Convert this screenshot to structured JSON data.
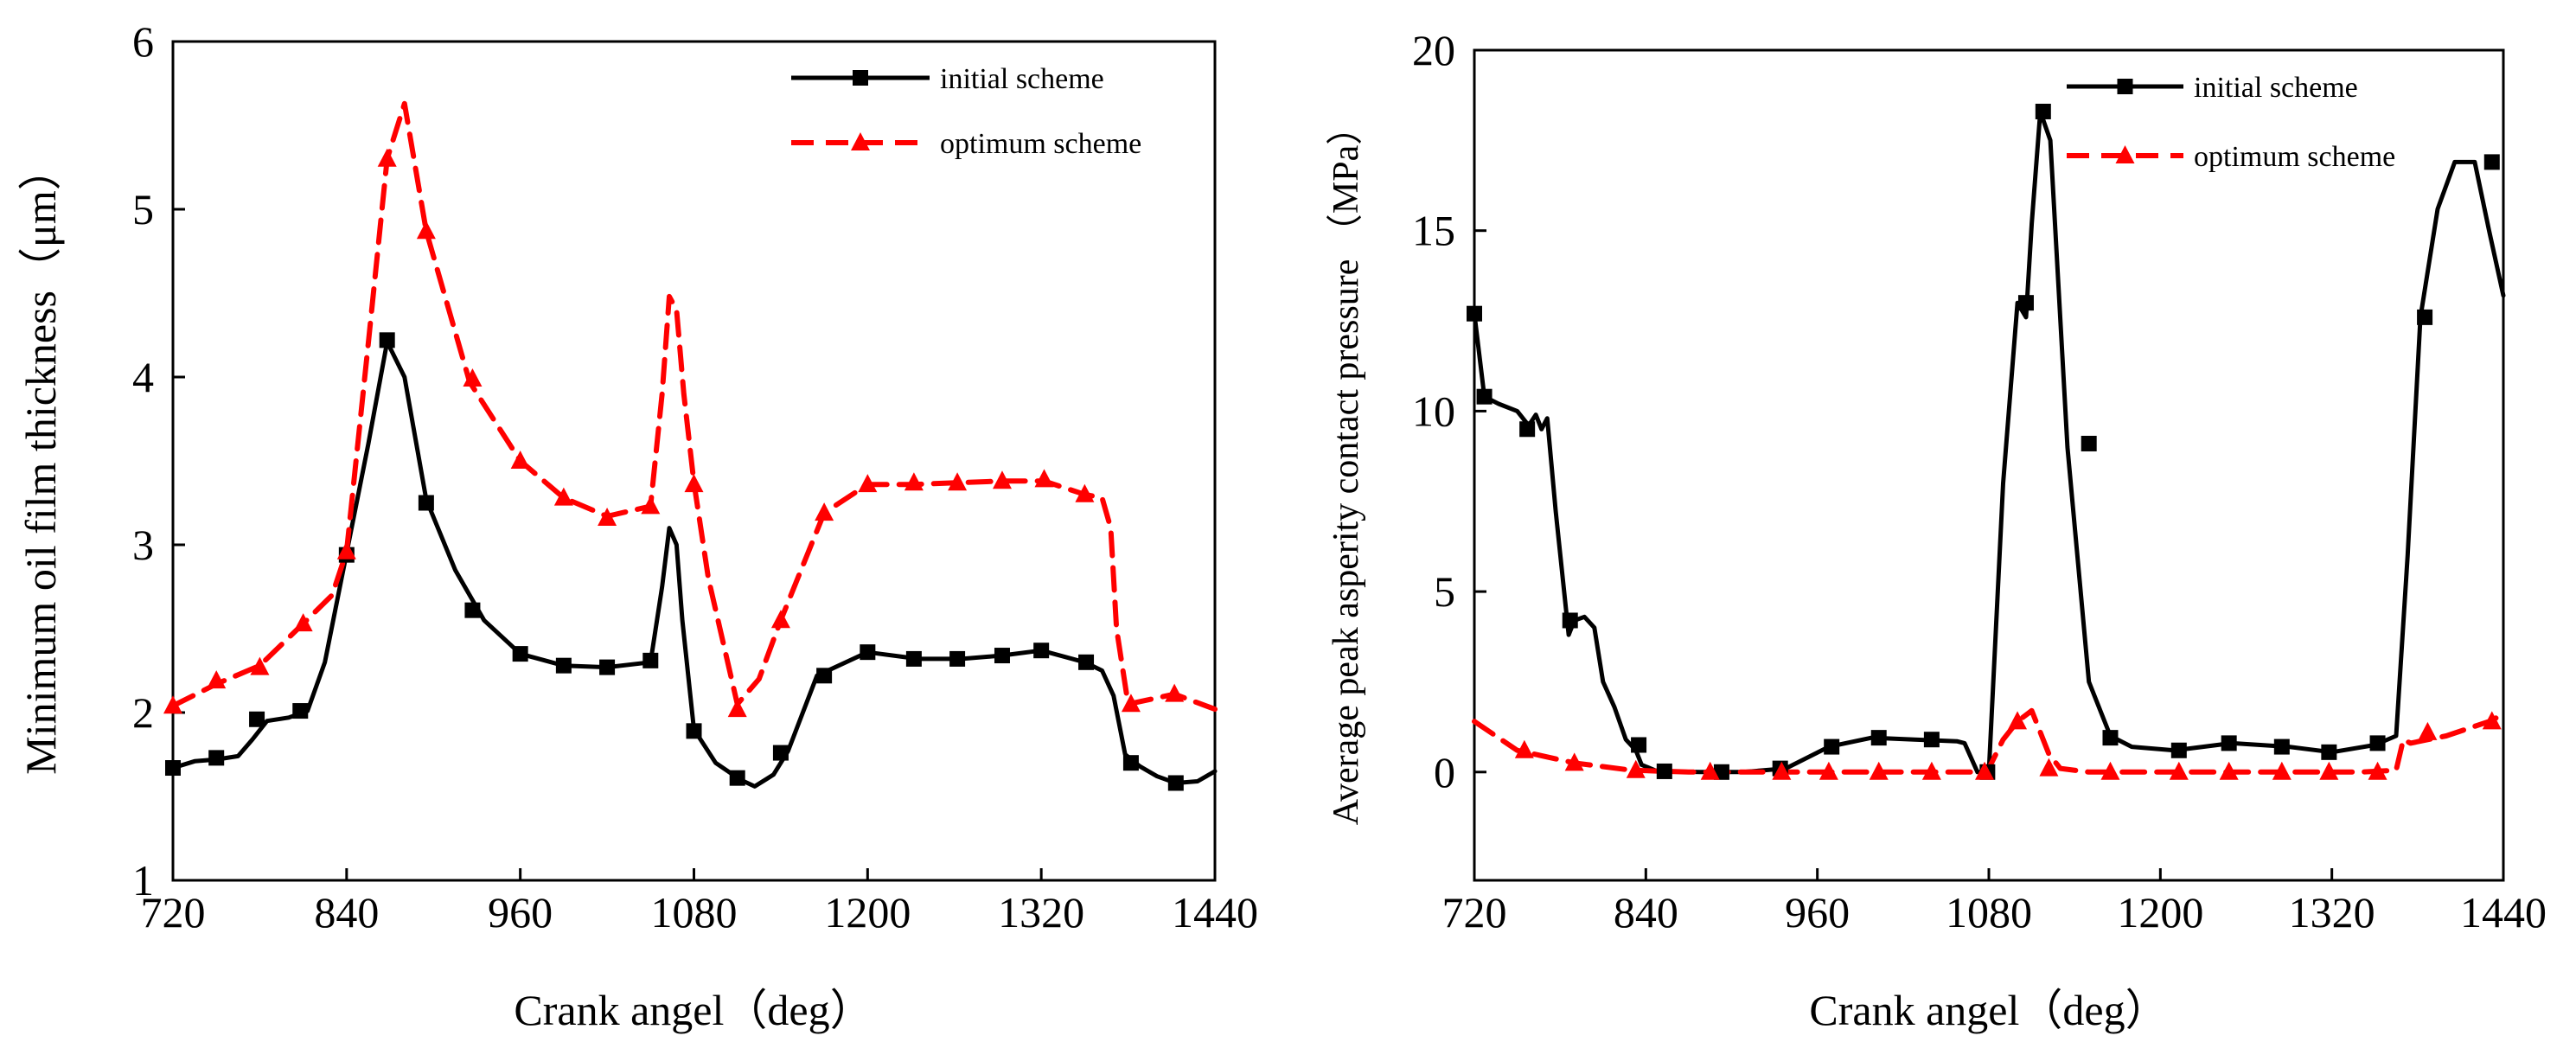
{
  "chart_data": [
    {
      "type": "line",
      "title": "",
      "xlabel": "Crank angel（deg）",
      "ylabel": "Minimum oil film thickness（μm）",
      "xlim": [
        720,
        1440
      ],
      "ylim": [
        1,
        6
      ],
      "xticks": [
        "720",
        "840",
        "960",
        "1080",
        "1200",
        "1320",
        "1440"
      ],
      "yticks": [
        "1",
        "2",
        "3",
        "4",
        "5",
        "6"
      ],
      "legend_position": "top-right",
      "series": [
        {
          "name": "initial scheme",
          "color": "#000000",
          "style": "solid",
          "marker": "square",
          "x": [
            720,
            735,
            750,
            765,
            775,
            785,
            800,
            813,
            825,
            840,
            855,
            868,
            880,
            895,
            915,
            935,
            960,
            990,
            1020,
            1050,
            1058,
            1063,
            1068,
            1072,
            1080,
            1095,
            1112,
            1122,
            1135,
            1145,
            1165,
            1200,
            1235,
            1265,
            1293,
            1320,
            1350,
            1362,
            1370,
            1378,
            1388,
            1400,
            1413,
            1428,
            1440
          ],
          "y": [
            1.67,
            1.71,
            1.72,
            1.74,
            1.84,
            1.95,
            1.97,
            2.01,
            2.3,
            2.95,
            3.6,
            4.21,
            4.0,
            3.27,
            2.85,
            2.55,
            2.35,
            2.28,
            2.27,
            2.3,
            2.75,
            3.1,
            3.0,
            2.55,
            1.9,
            1.7,
            1.6,
            1.56,
            1.63,
            1.77,
            2.22,
            2.36,
            2.32,
            2.32,
            2.34,
            2.37,
            2.3,
            2.25,
            2.1,
            1.75,
            1.68,
            1.62,
            1.58,
            1.59,
            1.65
          ],
          "markers_x": [
            720,
            750,
            778,
            808,
            840,
            868,
            895,
            927,
            960,
            990,
            1020,
            1050,
            1080,
            1110,
            1140,
            1170,
            1200,
            1232,
            1262,
            1293,
            1320,
            1351,
            1382,
            1413
          ],
          "markers_y": [
            1.67,
            1.73,
            1.96,
            2.01,
            2.94,
            4.22,
            3.25,
            2.61,
            2.35,
            2.28,
            2.27,
            2.31,
            1.89,
            1.61,
            1.76,
            2.22,
            2.36,
            2.32,
            2.32,
            2.34,
            2.37,
            2.3,
            1.7,
            1.58
          ]
        },
        {
          "name": "optimum scheme",
          "color": "#ff0000",
          "style": "dashed",
          "marker": "triangle",
          "x": [
            720,
            750,
            780,
            810,
            830,
            840,
            855,
            868,
            880,
            895,
            925,
            960,
            990,
            1020,
            1050,
            1058,
            1063,
            1068,
            1073,
            1080,
            1090,
            1110,
            1125,
            1140,
            1170,
            1200,
            1232,
            1262,
            1293,
            1322,
            1350,
            1362,
            1368,
            1372,
            1380,
            1412,
            1440
          ],
          "y": [
            2.04,
            2.17,
            2.28,
            2.53,
            2.7,
            2.96,
            4.2,
            5.3,
            5.63,
            4.87,
            3.97,
            3.5,
            3.28,
            3.17,
            3.23,
            3.9,
            4.48,
            4.4,
            3.9,
            3.37,
            2.8,
            2.05,
            2.2,
            2.55,
            3.19,
            3.36,
            3.36,
            3.37,
            3.38,
            3.38,
            3.3,
            3.28,
            3.1,
            2.5,
            2.05,
            2.11,
            2.02
          ],
          "markers_x": [
            720,
            750,
            780,
            810,
            840,
            868,
            895,
            927,
            960,
            990,
            1020,
            1050,
            1080,
            1110,
            1140,
            1170,
            1200,
            1232,
            1262,
            1293,
            1322,
            1350,
            1382,
            1412
          ],
          "markers_y": [
            2.04,
            2.19,
            2.27,
            2.53,
            2.96,
            5.3,
            4.87,
            3.99,
            3.5,
            3.28,
            3.16,
            3.23,
            3.36,
            2.02,
            2.55,
            3.19,
            3.36,
            3.37,
            3.37,
            3.38,
            3.39,
            3.3,
            2.05,
            2.11
          ]
        }
      ]
    },
    {
      "type": "line",
      "title": "",
      "xlabel": "Crank angel（deg）",
      "ylabel": "Average peak asperity contact pressure （MPa）",
      "xlim": [
        720,
        1440
      ],
      "ylim": [
        -3,
        20
      ],
      "xticks": [
        "720",
        "840",
        "960",
        "1080",
        "1200",
        "1320",
        "1440"
      ],
      "yticks": [
        "0",
        "5",
        "10",
        "15",
        "20"
      ],
      "legend_position": "top-right",
      "series": [
        {
          "name": "initial scheme",
          "color": "#000000",
          "style": "solid",
          "marker": "square",
          "x": [
            720,
            727,
            737,
            750,
            758,
            763,
            767,
            771,
            777,
            786,
            790,
            797,
            804,
            810,
            818,
            826,
            833,
            837,
            848,
            878,
            908,
            938,
            968,
            998,
            1028,
            1058,
            1063,
            1072,
            1080,
            1090,
            1100,
            1106,
            1110,
            1116,
            1123,
            1135,
            1150,
            1165,
            1180,
            1210,
            1250,
            1290,
            1320,
            1350,
            1365,
            1373,
            1382,
            1394,
            1406,
            1420,
            1430,
            1440
          ],
          "y": [
            12.7,
            10.4,
            10.2,
            10.0,
            9.6,
            9.9,
            9.5,
            9.8,
            7.2,
            3.8,
            4.2,
            4.3,
            4.0,
            2.5,
            1.8,
            0.9,
            0.6,
            0.2,
            0.02,
            0.0,
            0.0,
            0.1,
            0.7,
            0.95,
            0.9,
            0.85,
            0.8,
            0.0,
            0.0,
            8.0,
            13.0,
            12.6,
            15.2,
            18.3,
            17.5,
            9.0,
            2.5,
            1.0,
            0.7,
            0.6,
            0.8,
            0.7,
            0.55,
            0.75,
            1.0,
            6.0,
            12.6,
            15.6,
            16.9,
            16.9,
            15.0,
            13.2
          ],
          "markers_x": [
            720,
            727,
            757,
            787,
            835,
            853,
            893,
            934,
            970,
            1003,
            1040,
            1079,
            1106,
            1118,
            1150,
            1165,
            1213,
            1248,
            1285,
            1318,
            1352,
            1385,
            1432
          ],
          "markers_y": [
            12.7,
            10.4,
            9.5,
            4.2,
            0.75,
            0.02,
            0.0,
            0.1,
            0.7,
            0.95,
            0.9,
            0.0,
            13.0,
            18.3,
            9.1,
            0.95,
            0.6,
            0.8,
            0.7,
            0.55,
            0.8,
            12.6,
            16.9
          ]
        },
        {
          "name": "optimum scheme",
          "color": "#ff0000",
          "style": "dashed",
          "marker": "triangle",
          "x": [
            720,
            750,
            790,
            830,
            870,
            920,
            960,
            1000,
            1040,
            1075,
            1080,
            1090,
            1100,
            1110,
            1122,
            1130,
            1150,
            1200,
            1250,
            1300,
            1340,
            1365,
            1370,
            1375,
            1400,
            1430,
            1440
          ],
          "y": [
            1.4,
            0.6,
            0.25,
            0.05,
            0.0,
            0.0,
            0.0,
            0.0,
            0.0,
            0.0,
            0.1,
            0.9,
            1.4,
            1.7,
            0.5,
            0.1,
            0.0,
            0.0,
            0.0,
            0.0,
            0.0,
            0.05,
            0.9,
            0.8,
            1.0,
            1.4,
            1.6
          ],
          "markers_x": [
            755,
            790,
            833,
            885,
            935,
            968,
            1003,
            1040,
            1077,
            1100,
            1122,
            1165,
            1213,
            1248,
            1285,
            1318,
            1352,
            1387,
            1432
          ],
          "markers_y": [
            0.6,
            0.25,
            0.05,
            0.0,
            0.0,
            0.0,
            0.0,
            0.0,
            0.0,
            1.4,
            0.1,
            0.0,
            0.0,
            0.0,
            0.0,
            0.0,
            0.0,
            1.1,
            1.4
          ]
        }
      ]
    }
  ]
}
